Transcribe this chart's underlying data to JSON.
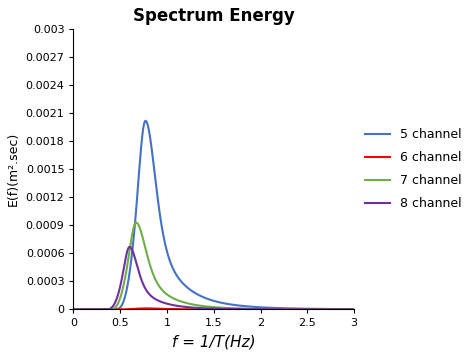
{
  "title": "Spectrum Energy",
  "xlabel": "f = 1/T(Hz)",
  "ylabel": "E(f)(m².sec)",
  "xlim": [
    0,
    3
  ],
  "ylim": [
    0,
    0.003
  ],
  "yticks": [
    0,
    0.0003,
    0.0006,
    0.0009,
    0.0012,
    0.0015,
    0.0018,
    0.0021,
    0.0024,
    0.0027,
    0.003
  ],
  "ytick_labels": [
    "0",
    "0.0003",
    "0.0006",
    "0.0009",
    "0.0012",
    "0.0015",
    "0.0018",
    "0.0021",
    "0.0024",
    "0.0027",
    "0.003"
  ],
  "xticks": [
    0,
    0.5,
    1,
    1.5,
    2,
    2.5,
    3
  ],
  "series": [
    {
      "label": "5 channel",
      "color": "#4472C4",
      "peak_freq": 0.77,
      "peak_val": 0.00202,
      "gamma": 2.5,
      "sigma_a": 0.12,
      "sigma_b": 0.18
    },
    {
      "label": "6 channel",
      "color": "#FF0000",
      "peak_freq": 0.77,
      "peak_val": 1.2e-05,
      "gamma": 1.5,
      "sigma_a": 0.12,
      "sigma_b": 0.18
    },
    {
      "label": "7 channel",
      "color": "#70AD47",
      "peak_freq": 0.67,
      "peak_val": 0.00093,
      "gamma": 2.2,
      "sigma_a": 0.12,
      "sigma_b": 0.2
    },
    {
      "label": "8 channel",
      "color": "#7030A0",
      "peak_freq": 0.6,
      "peak_val": 0.00067,
      "gamma": 2.5,
      "sigma_a": 0.12,
      "sigma_b": 0.18
    }
  ],
  "background_color": "#ffffff"
}
